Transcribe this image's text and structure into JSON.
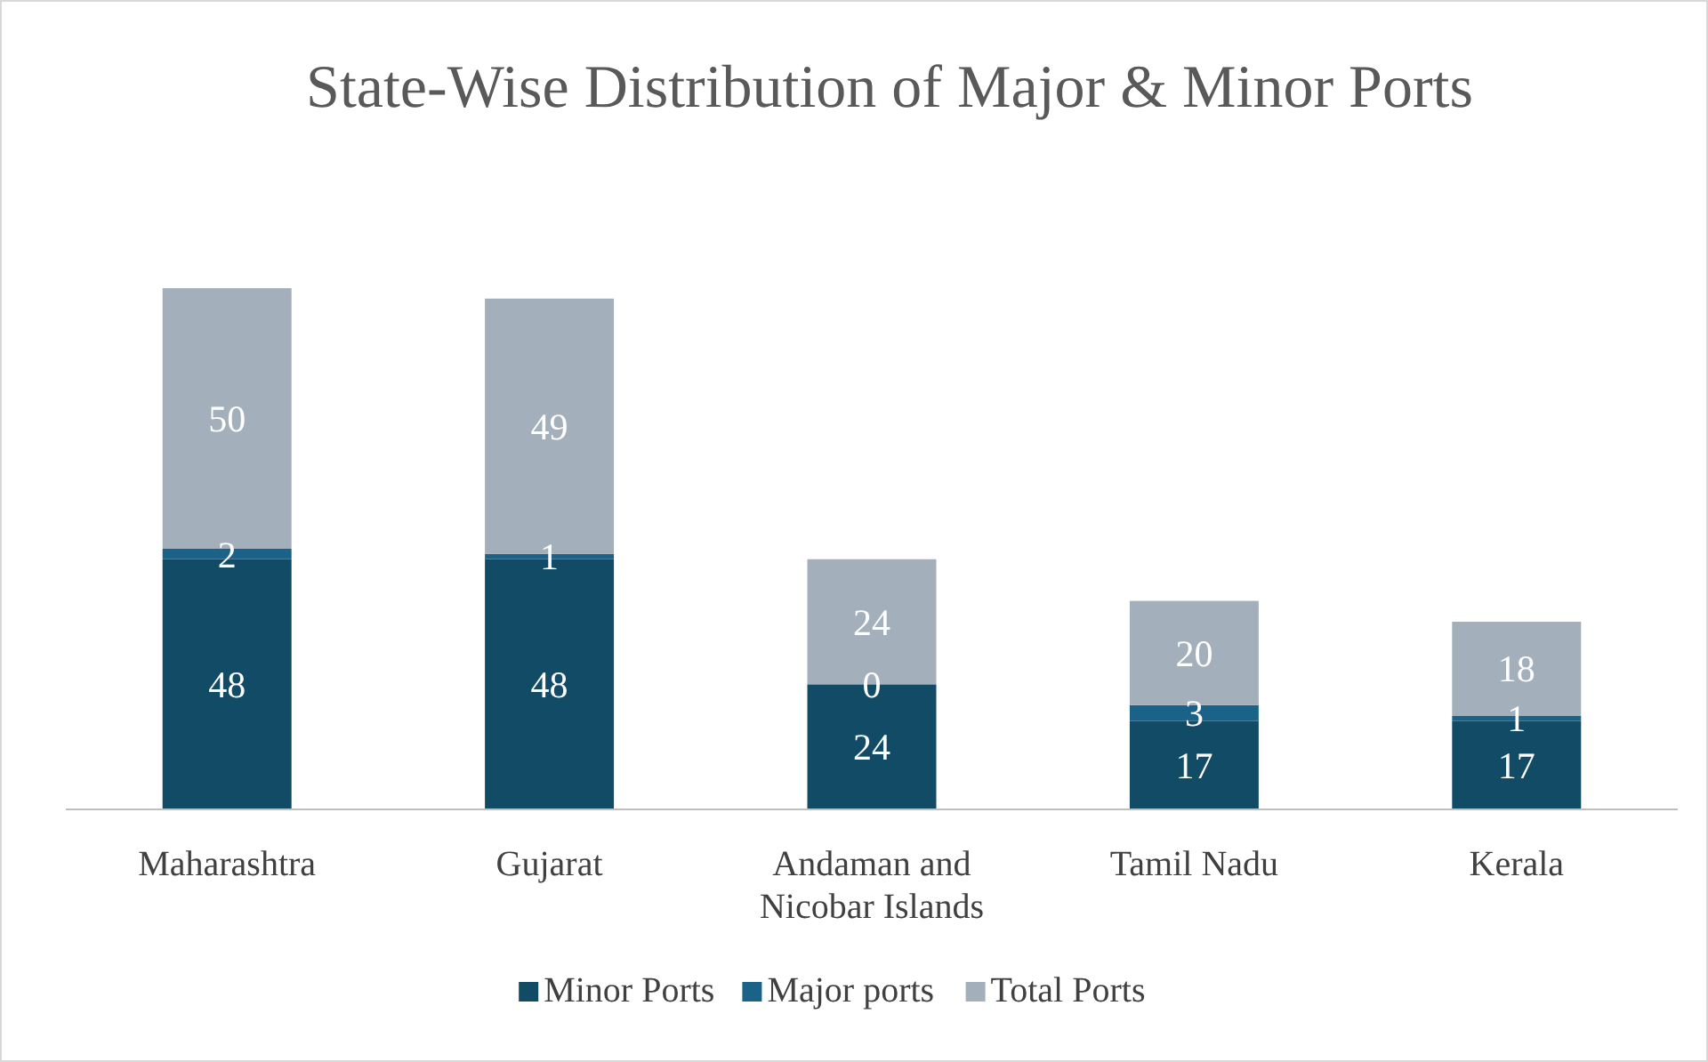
{
  "chart_data": {
    "type": "bar",
    "title": "State-Wise Distribution of Major & Minor Ports",
    "categories": [
      "Maharashtra",
      "Gujarat",
      "Andaman and Nicobar Islands",
      "Tamil Nadu",
      "Kerala"
    ],
    "stacked": true,
    "data_labels": true,
    "legend": "bottom",
    "series": [
      {
        "name": "Minor Ports",
        "color": "#114b65",
        "values": [
          48,
          48,
          24,
          17,
          17
        ]
      },
      {
        "name": "Major ports",
        "color": "#1b6288",
        "values": [
          2,
          1,
          0,
          3,
          1
        ]
      },
      {
        "name": "Total Ports",
        "color": "#a3afbb",
        "values": [
          50,
          49,
          24,
          20,
          18
        ]
      }
    ]
  }
}
